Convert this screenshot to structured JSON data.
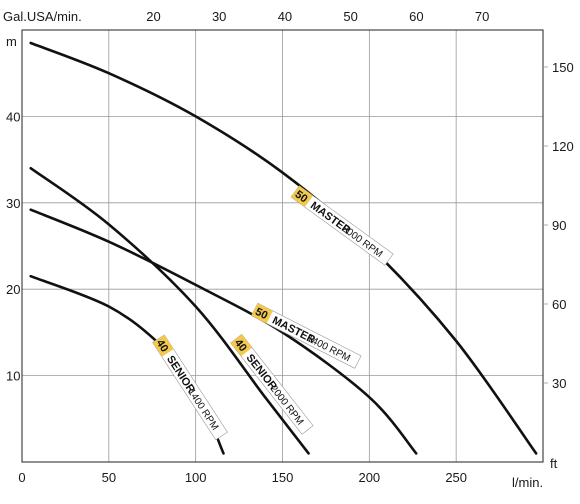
{
  "chart_data": {
    "type": "line",
    "title": "",
    "xlabel": "l/min.",
    "ylabel": "m",
    "x2label": "Gal.USA/min.",
    "y2label": "ft",
    "xlim": [
      0,
      300
    ],
    "ylim": [
      0,
      50
    ],
    "x_ticks": [
      0,
      50,
      100,
      150,
      200,
      250
    ],
    "y_ticks": [
      10,
      20,
      30,
      40
    ],
    "x2_ticks": [
      20,
      30,
      40,
      50,
      60,
      70
    ],
    "y2_ticks": [
      30,
      60,
      90,
      120,
      150
    ],
    "grid": true,
    "series": [
      {
        "model": "50",
        "name": "MASTER",
        "rpm": "2000 RPM",
        "color": "#111111",
        "label_fill": "#f2c94c",
        "points": [
          [
            5,
            48.5
          ],
          [
            50,
            45
          ],
          [
            100,
            40
          ],
          [
            150,
            33.5
          ],
          [
            200,
            25
          ],
          [
            250,
            14
          ],
          [
            296,
            1
          ]
        ]
      },
      {
        "model": "50",
        "name": "MASTER",
        "rpm": "1400 RPM",
        "color": "#111111",
        "label_fill": "#f2c94c",
        "points": [
          [
            5,
            29.2
          ],
          [
            50,
            25.5
          ],
          [
            100,
            20.5
          ],
          [
            150,
            15
          ],
          [
            200,
            7.5
          ],
          [
            227,
            1
          ]
        ]
      },
      {
        "model": "40",
        "name": "SENIOR",
        "rpm": "2000 RPM",
        "color": "#111111",
        "label_fill": "#f2c94c",
        "points": [
          [
            5,
            34
          ],
          [
            50,
            27.5
          ],
          [
            100,
            18
          ],
          [
            140,
            7.5
          ],
          [
            165,
            1
          ]
        ]
      },
      {
        "model": "40",
        "name": "SENIOR",
        "rpm": "1400 RPM",
        "color": "#111111",
        "label_fill": "#f2c94c",
        "points": [
          [
            5,
            21.5
          ],
          [
            50,
            18
          ],
          [
            80,
            13.5
          ],
          [
            100,
            8.5
          ],
          [
            116,
            1
          ]
        ]
      }
    ]
  }
}
